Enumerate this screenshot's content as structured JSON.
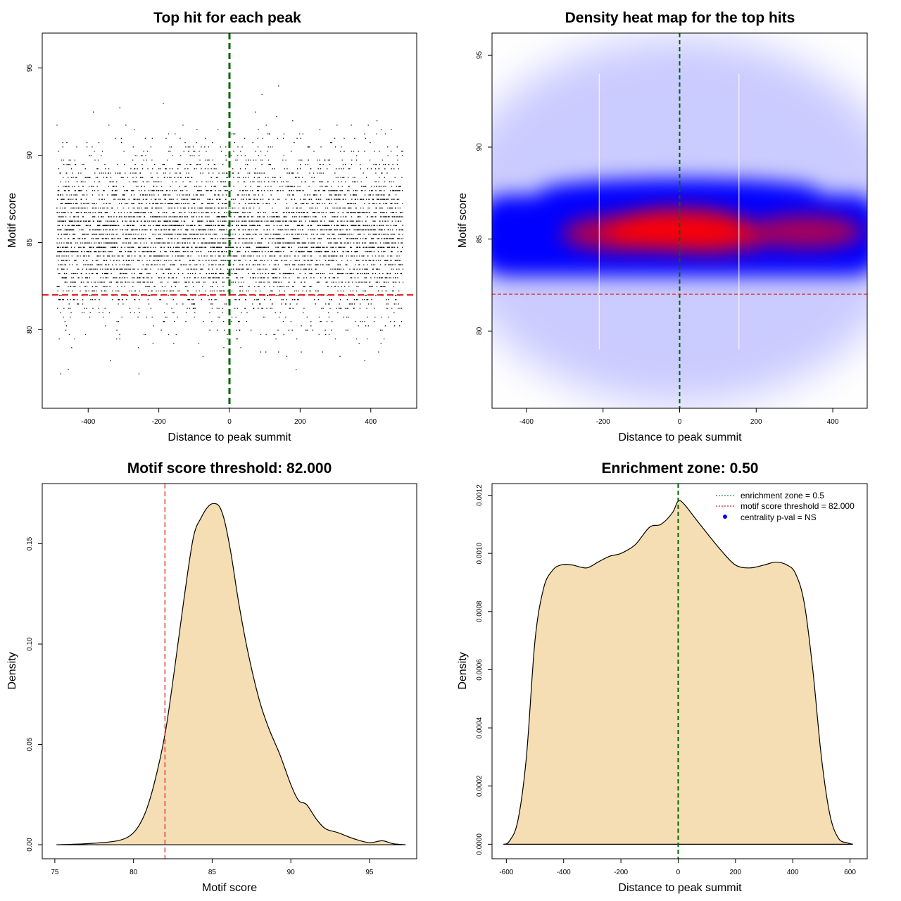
{
  "chart_data": [
    {
      "id": "scatter",
      "type": "scatter",
      "title": "Top hit for each peak",
      "xlabel": "Distance to peak summit",
      "ylabel": "Motif score",
      "xlim": [
        -530,
        530
      ],
      "ylim": [
        75.5,
        97
      ],
      "xticks": [
        -400,
        -200,
        0,
        200,
        400
      ],
      "xtick_labels": [
        "-400",
        "-200",
        "0",
        "200",
        "400"
      ],
      "yticks": [
        80,
        85,
        90,
        95
      ],
      "ytick_labels": [
        "80",
        "85",
        "90",
        "95"
      ],
      "point_count": 6000,
      "x_range": [
        -490,
        490
      ],
      "score_center": 85.4,
      "score_sd": 2.3,
      "vline_x": 0,
      "vline_color": "#006400",
      "hline_y": 82,
      "hline_color": "#e31a1c"
    },
    {
      "id": "heatmap",
      "type": "heatmap",
      "title": "Density heat map for the top hits",
      "xlabel": "Distance to peak summit",
      "ylabel": "Motif score",
      "xlim": [
        -490,
        490
      ],
      "ylim": [
        75.8,
        96.2
      ],
      "xticks": [
        -400,
        -200,
        0,
        200,
        400
      ],
      "xtick_labels": [
        "-400",
        "-200",
        "0",
        "200",
        "400"
      ],
      "yticks": [
        80,
        85,
        90,
        95
      ],
      "ytick_labels": [
        "80",
        "85",
        "90",
        "95"
      ],
      "hot_spots": [
        {
          "x": 0,
          "y": 85.5,
          "weight": 1.0
        },
        {
          "x": -150,
          "y": 85.3,
          "weight": 0.75
        },
        {
          "x": 330,
          "y": 85.4,
          "weight": 0.7
        },
        {
          "x": 100,
          "y": 85.0,
          "weight": 0.6
        }
      ],
      "faint_vlines_x": [
        -210,
        155
      ],
      "vline_x": 0,
      "vline_color": "#006400",
      "hline_y": 82,
      "hline_color": "#e31a1c"
    },
    {
      "id": "score_density",
      "type": "area",
      "title": "Motif score threshold: 82.000",
      "xlabel": "Motif score",
      "ylabel": "Density",
      "xlim": [
        74.2,
        98
      ],
      "ylim": [
        -0.007,
        0.18
      ],
      "xticks": [
        75,
        80,
        85,
        90,
        95
      ],
      "xtick_labels": [
        "75",
        "80",
        "85",
        "90",
        "95"
      ],
      "yticks": [
        0,
        0.05,
        0.1,
        0.15
      ],
      "ytick_labels": [
        "0.00",
        "0.05",
        "0.10",
        "0.15"
      ],
      "x": [
        75.1,
        77,
        79,
        80,
        80.7,
        81.3,
        82,
        82.6,
        83.2,
        83.8,
        84.3,
        84.8,
        85.2,
        85.5,
        85.8,
        86.2,
        86.7,
        87.3,
        88,
        88.6,
        89.3,
        90,
        90.5,
        91,
        91.6,
        92.2,
        93,
        94,
        95,
        95.8,
        96.5,
        97.3
      ],
      "y": [
        0,
        0.0005,
        0.002,
        0.006,
        0.015,
        0.03,
        0.055,
        0.087,
        0.122,
        0.153,
        0.163,
        0.169,
        0.17,
        0.168,
        0.161,
        0.145,
        0.12,
        0.095,
        0.072,
        0.058,
        0.045,
        0.03,
        0.022,
        0.02,
        0.013,
        0.008,
        0.006,
        0.003,
        0.001,
        0.002,
        0.0005,
        0
      ],
      "fill": "#f5deb3",
      "threshold_x": 82,
      "threshold_color": "#e31a1c"
    },
    {
      "id": "position_density",
      "type": "area",
      "title": "Enrichment zone: 0.50",
      "xlabel": "Distance to peak summit",
      "ylabel": "Density",
      "xlim": [
        -650,
        660
      ],
      "ylim": [
        -5e-05,
        0.00124
      ],
      "xticks": [
        -600,
        -400,
        -200,
        0,
        200,
        400,
        600
      ],
      "xtick_labels": [
        "-600",
        "-400",
        "-200",
        "0",
        "200",
        "400",
        "600"
      ],
      "yticks": [
        0,
        0.0002,
        0.0004,
        0.0006,
        0.0008,
        0.001,
        0.0012
      ],
      "ytick_labels": [
        "0.0000",
        "0.0002",
        "0.0004",
        "0.0006",
        "0.0008",
        "0.0010",
        "0.0012"
      ],
      "x": [
        -610,
        -590,
        -560,
        -530,
        -500,
        -470,
        -440,
        -410,
        -370,
        -320,
        -280,
        -240,
        -200,
        -150,
        -100,
        -60,
        -20,
        0,
        20,
        60,
        100,
        150,
        200,
        250,
        300,
        340,
        380,
        410,
        440,
        470,
        500,
        530,
        560,
        590,
        610
      ],
      "y": [
        0,
        1e-05,
        8e-05,
        0.0003,
        0.0007,
        0.00088,
        0.00094,
        0.00096,
        0.00096,
        0.00095,
        0.00097,
        0.00099,
        0.001,
        0.00103,
        0.00109,
        0.0011,
        0.00114,
        0.00118,
        0.00117,
        0.00112,
        0.00107,
        0.00101,
        0.00096,
        0.00095,
        0.00096,
        0.00097,
        0.00096,
        0.00093,
        0.00083,
        0.0006,
        0.0003,
        0.0001,
        2e-05,
        5e-06,
        0
      ],
      "fill": "#f5deb3",
      "vline_x": 0,
      "vline_color": "#006400",
      "legend": [
        {
          "label": "enrichment zone = 0.5",
          "color": "#1a9641",
          "style": "dotted"
        },
        {
          "label": "motif score threshold = 82.000",
          "color": "#e31a1c",
          "style": "dotted"
        },
        {
          "label": "centrality p-val = NS",
          "color": "#0000ff",
          "style": "point"
        }
      ]
    }
  ]
}
